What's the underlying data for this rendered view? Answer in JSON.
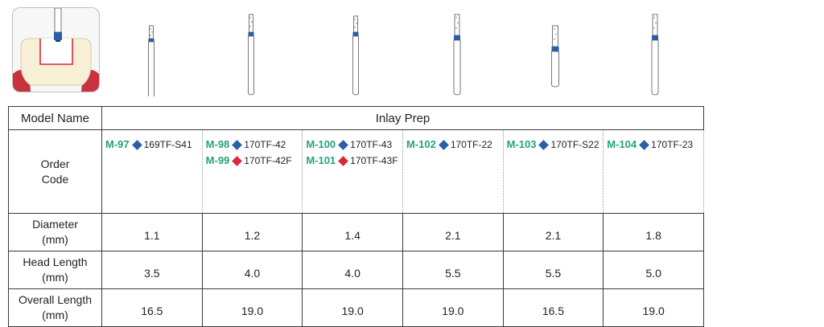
{
  "table": {
    "row_labels": {
      "model_name": "Model Name",
      "order_code_1": "Order",
      "order_code_2": "Code",
      "diameter_1": "Diameter",
      "diameter_2": "(mm)",
      "head_length_1": "Head Length",
      "head_length_2": "(mm)",
      "overall_length_1": "Overall Length",
      "overall_length_2": "(mm)"
    },
    "category": "Inlay Prep",
    "columns": [
      {
        "codes": [
          {
            "model": "M-97",
            "diamond": "blue",
            "code": "169TF-S41"
          }
        ],
        "diameter": "1.1",
        "head_length": "3.5",
        "overall_length": "16.5"
      },
      {
        "codes": [
          {
            "model": "M-98",
            "diamond": "blue",
            "code": "170TF-42"
          },
          {
            "model": "M-99",
            "diamond": "red",
            "code": "170TF-42F"
          }
        ],
        "diameter": "1.2",
        "head_length": "4.0",
        "overall_length": "19.0"
      },
      {
        "codes": [
          {
            "model": "M-100",
            "diamond": "blue",
            "code": "170TF-43"
          },
          {
            "model": "M-101",
            "diamond": "red",
            "code": "170TF-43F"
          }
        ],
        "diameter": "1.4",
        "head_length": "4.0",
        "overall_length": "19.0"
      },
      {
        "codes": [
          {
            "model": "M-102",
            "diamond": "blue",
            "code": "170TF-22"
          }
        ],
        "diameter": "2.1",
        "head_length": "5.5",
        "overall_length": "19.0"
      },
      {
        "codes": [
          {
            "model": "M-103",
            "diamond": "blue",
            "code": "170TF-S22"
          }
        ],
        "diameter": "2.1",
        "head_length": "5.5",
        "overall_length": "16.5"
      },
      {
        "codes": [
          {
            "model": "M-104",
            "diamond": "blue",
            "code": "170TF-23"
          }
        ],
        "diameter": "1.8",
        "head_length": "5.0",
        "overall_length": "19.0"
      }
    ]
  },
  "colors": {
    "model_green": "#23a27b",
    "diamond_blue": "#2a5fa8",
    "diamond_red": "#d8283b",
    "band_blue": "#2a5fa8",
    "gum_red": "#c8323f"
  },
  "icons": {
    "illustration": "tooth-inlay-prep-illustration",
    "bur": "bur-icon"
  }
}
